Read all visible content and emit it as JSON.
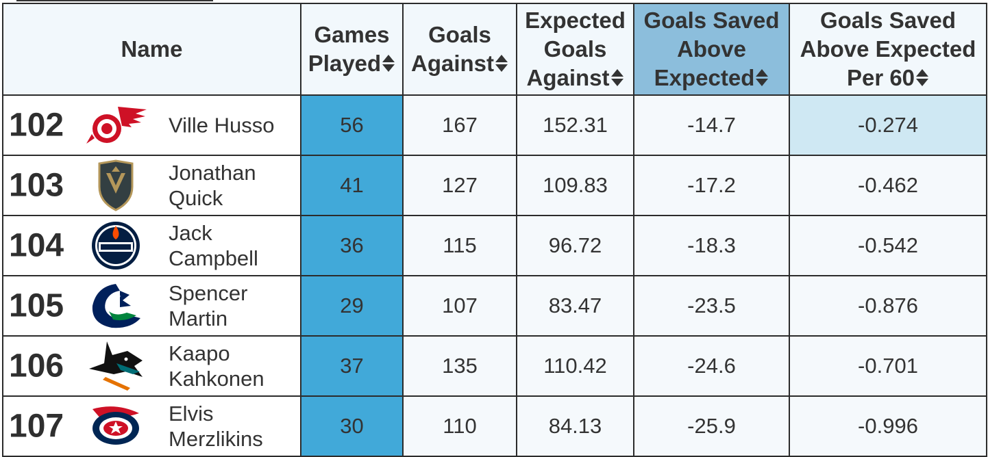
{
  "table": {
    "headers": {
      "name": "Name",
      "games_played": [
        "Games",
        "Played"
      ],
      "goals_against": [
        "Goals",
        "Against"
      ],
      "expected_goals_against": [
        "Expected",
        "Goals",
        "Against"
      ],
      "gsax": [
        "Goals Saved",
        "Above",
        "Expected"
      ],
      "gsax_per60": [
        "Goals Saved",
        "Above Expected",
        "Per 60"
      ]
    },
    "sorted_column": "gsax",
    "rows": [
      {
        "rank": "102",
        "team_logo": "red-wings-logo-icon",
        "name": [
          "Ville Husso"
        ],
        "gp": "56",
        "ga": "167",
        "xga": "152.31",
        "gsax": "-14.7",
        "gsax60": "-0.274"
      },
      {
        "rank": "103",
        "team_logo": "golden-knights-logo-icon",
        "name": [
          "Jonathan",
          "Quick"
        ],
        "gp": "41",
        "ga": "127",
        "xga": "109.83",
        "gsax": "-17.2",
        "gsax60": "-0.462"
      },
      {
        "rank": "104",
        "team_logo": "oilers-logo-icon",
        "name": [
          "Jack",
          "Campbell"
        ],
        "gp": "36",
        "ga": "115",
        "xga": "96.72",
        "gsax": "-18.3",
        "gsax60": "-0.542"
      },
      {
        "rank": "105",
        "team_logo": "canucks-logo-icon",
        "name": [
          "Spencer",
          "Martin"
        ],
        "gp": "29",
        "ga": "107",
        "xga": "83.47",
        "gsax": "-23.5",
        "gsax60": "-0.876"
      },
      {
        "rank": "106",
        "team_logo": "sharks-logo-icon",
        "name": [
          "Kaapo",
          "Kahkonen"
        ],
        "gp": "37",
        "ga": "135",
        "xga": "110.42",
        "gsax": "-24.6",
        "gsax60": "-0.701"
      },
      {
        "rank": "107",
        "team_logo": "blue-jackets-logo-icon",
        "name": [
          "Elvis",
          "Merzlikins"
        ],
        "gp": "30",
        "ga": "110",
        "xga": "84.13",
        "gsax": "-25.9",
        "gsax60": "-0.996"
      }
    ]
  },
  "colors": {
    "header_bg": "#f2f8fc",
    "sorted_header_bg": "#8cbedc",
    "games_played_bg": "#41a9d9",
    "highlight_cell_bg": "#cfe8f3",
    "cell_bg": "#f5f9fc",
    "border": "#2b2b2b"
  }
}
